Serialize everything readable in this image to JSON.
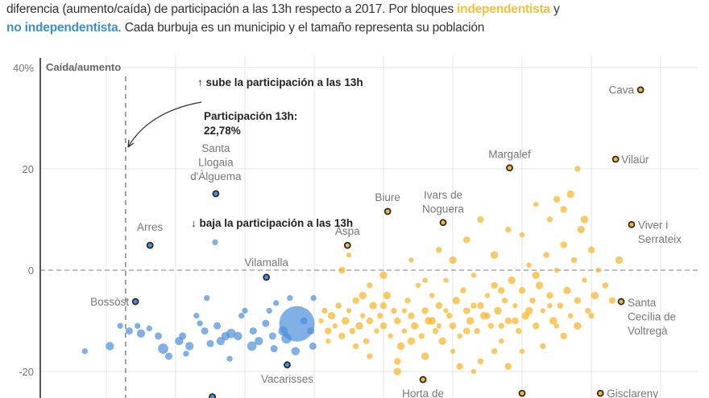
{
  "header": {
    "line1_text": "diferencia (aumento/caída) de participación a las 13h respecto a 2017. Por bloques ",
    "independentista": "independentista",
    "y": " y",
    "no_independentista": "no independentista",
    "line2_text": ". Cada burbuja es un municipio y el tamaño representa su población"
  },
  "chart_data": {
    "type": "scatter",
    "ylabel": "Caída/aumento",
    "y_ticks": [
      "40%",
      "20",
      "0",
      "-20"
    ],
    "y_tick_values": [
      40,
      20,
      0,
      -20
    ],
    "ylim": [
      -25,
      42
    ],
    "xlim": [
      10.5,
      105
    ],
    "x_grid": [
      20,
      30,
      40,
      50,
      60,
      70,
      80,
      90,
      100
    ],
    "grid": true,
    "colors": {
      "independentista": "#f5b731",
      "no_independentista": "#4a8fdc",
      "highlight_stroke": "#2b2b2b"
    },
    "reference_line": {
      "x": 22.78,
      "label": "Participación 13h:",
      "value": "22,78%"
    },
    "annotations": {
      "up": "↑ sube la participación a las 13h",
      "down": "↓ baja la participación a las 13h"
    },
    "highlighted": [
      {
        "name": [
          "Cava"
        ],
        "x": 97.1,
        "y": 35.6,
        "bloc": "independentista"
      },
      {
        "name": [
          "Vilaür"
        ],
        "x": 93.5,
        "y": 21.9,
        "bloc": "independentista"
      },
      {
        "name": [
          "Margalef"
        ],
        "x": 78.2,
        "y": 20.2,
        "bloc": "independentista"
      },
      {
        "name": [
          "Biure"
        ],
        "x": 60.6,
        "y": 11.6,
        "bloc": "independentista"
      },
      {
        "name": [
          "Ivars de",
          "Noguera"
        ],
        "x": 68.6,
        "y": 9.4,
        "bloc": "independentista"
      },
      {
        "name": [
          "Aspa"
        ],
        "x": 54.8,
        "y": 4.9,
        "bloc": "independentista"
      },
      {
        "name": [
          "Viver i",
          "Serrateix"
        ],
        "x": 95.8,
        "y": 9.0,
        "bloc": "independentista"
      },
      {
        "name": [
          "Santa",
          "Cecília de",
          "Voltregà"
        ],
        "x": 94.3,
        "y": -6.2,
        "bloc": "independentista"
      },
      {
        "name": [
          "Horta de"
        ],
        "x": 65.7,
        "y": -21.6,
        "bloc": "independentista"
      },
      {
        "name": [],
        "x": 80.0,
        "y": -24.3,
        "bloc": "independentista"
      },
      {
        "name": [
          "Gisclareny"
        ],
        "x": 91.3,
        "y": -24.3,
        "bloc": "independentista"
      },
      {
        "name": [
          "Santa",
          "Llogaia",
          "d'Àlguema"
        ],
        "x": 35.8,
        "y": 15.1,
        "bloc": "no_independentista"
      },
      {
        "name": [
          "Arres"
        ],
        "x": 26.3,
        "y": 4.9,
        "bloc": "no_independentista"
      },
      {
        "name": [
          "Vilamalla"
        ],
        "x": 43.1,
        "y": -1.4,
        "bloc": "no_independentista"
      },
      {
        "name": [
          "Bossòst"
        ],
        "x": 24.2,
        "y": -6.2,
        "bloc": "no_independentista"
      },
      {
        "name": [
          "Vacarisses"
        ],
        "x": 46.1,
        "y": -18.7,
        "bloc": "no_independentista"
      },
      {
        "name": [],
        "x": 35.3,
        "y": -25.0,
        "bloc": "no_independentista"
      }
    ],
    "no_independentista_points": [
      [
        16.9,
        -16,
        2
      ],
      [
        23.3,
        -12,
        3
      ],
      [
        24.5,
        -11,
        2
      ],
      [
        25,
        -12.5,
        4
      ],
      [
        26.2,
        -11.5,
        2
      ],
      [
        28.2,
        -15.5,
        6
      ],
      [
        29,
        -17,
        3
      ],
      [
        30.5,
        -14,
        4
      ],
      [
        31,
        -13,
        3
      ],
      [
        32,
        -15,
        4
      ],
      [
        33,
        -9,
        2
      ],
      [
        33.5,
        -10.5,
        2
      ],
      [
        34.2,
        -12,
        3
      ],
      [
        35,
        -14.5,
        3
      ],
      [
        36,
        -11,
        3
      ],
      [
        37.2,
        -13,
        4
      ],
      [
        38,
        -12.5,
        5
      ],
      [
        39,
        -13,
        4
      ],
      [
        39.5,
        -9,
        2
      ],
      [
        40,
        -8,
        2
      ],
      [
        41,
        -15,
        5
      ],
      [
        42,
        -14,
        4
      ],
      [
        43,
        -10.5,
        3
      ],
      [
        44,
        -13,
        3
      ],
      [
        44.5,
        -6.5,
        2
      ],
      [
        45.5,
        -12,
        5
      ],
      [
        46,
        -13.5,
        6
      ],
      [
        46.5,
        -5.5,
        2
      ],
      [
        47.5,
        -10.6,
        14
      ],
      [
        48.5,
        -10,
        3
      ],
      [
        49.5,
        -12,
        3
      ],
      [
        49.8,
        -15,
        3
      ],
      [
        49.9,
        -5.5,
        2
      ],
      [
        47.3,
        -16,
        4
      ],
      [
        44.2,
        -15.5,
        3
      ],
      [
        35.7,
        5.5,
        2
      ],
      [
        31.5,
        -16.5,
        2
      ],
      [
        34.5,
        -5.5,
        2
      ],
      [
        41.2,
        -12,
        3
      ],
      [
        37.8,
        -17.5,
        2
      ],
      [
        20.5,
        -15,
        4
      ],
      [
        22,
        -11,
        2
      ],
      [
        27.5,
        -13,
        3
      ],
      [
        36.5,
        -14,
        4
      ],
      [
        43.5,
        -8,
        2
      ]
    ],
    "independentista_points": [
      [
        51,
        -10
      ],
      [
        51.5,
        -8
      ],
      [
        52,
        -12
      ],
      [
        52.5,
        -9
      ],
      [
        53,
        -11
      ],
      [
        53.5,
        -7
      ],
      [
        54,
        -13
      ],
      [
        54.5,
        -10
      ],
      [
        55,
        -8
      ],
      [
        55.5,
        -12
      ],
      [
        56,
        -6
      ],
      [
        56.5,
        -11
      ],
      [
        57,
        -9
      ],
      [
        57.5,
        -14
      ],
      [
        58,
        -10
      ],
      [
        58.5,
        -7
      ],
      [
        59,
        -12
      ],
      [
        59.5,
        -9
      ],
      [
        60,
        -11
      ],
      [
        60.5,
        -5
      ],
      [
        61,
        -13
      ],
      [
        61.5,
        -8
      ],
      [
        62,
        -10
      ],
      [
        62.5,
        -15
      ],
      [
        63,
        -12
      ],
      [
        63.5,
        -6
      ],
      [
        64,
        -9
      ],
      [
        64.5,
        -11
      ],
      [
        65,
        -3
      ],
      [
        65.5,
        -13
      ],
      [
        66,
        -8
      ],
      [
        66.5,
        -10
      ],
      [
        67,
        -5
      ],
      [
        67.5,
        -12
      ],
      [
        68,
        -7
      ],
      [
        68.5,
        -14
      ],
      [
        69,
        -2
      ],
      [
        69.5,
        -9
      ],
      [
        70,
        -11
      ],
      [
        70.5,
        -6
      ],
      [
        71,
        -13
      ],
      [
        71.5,
        -4
      ],
      [
        72,
        -8
      ],
      [
        72.5,
        -10
      ],
      [
        73,
        -1
      ],
      [
        73.5,
        -12
      ],
      [
        74,
        -7
      ],
      [
        74.5,
        -9
      ],
      [
        75,
        -5
      ],
      [
        75.5,
        -11
      ],
      [
        76,
        -3
      ],
      [
        76.5,
        -8
      ],
      [
        77,
        -14
      ],
      [
        77.5,
        -6
      ],
      [
        78,
        -10
      ],
      [
        78.5,
        -2
      ],
      [
        79,
        -7
      ],
      [
        79.5,
        -12
      ],
      [
        80,
        -4
      ],
      [
        80.5,
        -9
      ],
      [
        81,
        1
      ],
      [
        81.5,
        -6
      ],
      [
        82,
        -11
      ],
      [
        82.5,
        -3
      ],
      [
        83,
        -8
      ],
      [
        83.5,
        3
      ],
      [
        84,
        -5
      ],
      [
        84.5,
        -10
      ],
      [
        85,
        0
      ],
      [
        85.5,
        -7
      ],
      [
        86,
        5
      ],
      [
        86.5,
        -4
      ],
      [
        87,
        -9
      ],
      [
        87.5,
        2
      ],
      [
        88,
        -6
      ],
      [
        88.5,
        8
      ],
      [
        89,
        -2
      ],
      [
        89.5,
        -8
      ],
      [
        90,
        4
      ],
      [
        90.5,
        -5
      ],
      [
        91,
        0
      ],
      [
        92,
        -3
      ],
      [
        93,
        -6
      ],
      [
        94,
        2
      ],
      [
        55,
        3
      ],
      [
        58,
        -17
      ],
      [
        62,
        -18
      ],
      [
        66,
        -17
      ],
      [
        70,
        -16
      ],
      [
        74,
        -18
      ],
      [
        78,
        -19
      ],
      [
        60,
        -1
      ],
      [
        64,
        2
      ],
      [
        68,
        4
      ],
      [
        72,
        6
      ],
      [
        76,
        3
      ],
      [
        80,
        7
      ],
      [
        84,
        10
      ],
      [
        86,
        12
      ],
      [
        87,
        15
      ],
      [
        82,
        13
      ],
      [
        78,
        8
      ],
      [
        74,
        10
      ],
      [
        70,
        2
      ],
      [
        66,
        -2
      ],
      [
        58,
        -3
      ],
      [
        54,
        0
      ],
      [
        62,
        -20
      ],
      [
        73,
        -20
      ],
      [
        83,
        -15
      ],
      [
        86,
        -13
      ],
      [
        88,
        -11
      ],
      [
        80,
        -16
      ],
      [
        76,
        -16
      ],
      [
        71,
        -19
      ],
      [
        57,
        -5
      ],
      [
        69,
        -8
      ],
      [
        75,
        -9
      ],
      [
        79,
        -10
      ],
      [
        81,
        -8
      ],
      [
        84,
        -7
      ],
      [
        77,
        -11
      ],
      [
        72,
        -12
      ],
      [
        67,
        -10
      ],
      [
        63,
        -8
      ],
      [
        88,
        20
      ],
      [
        85,
        14
      ],
      [
        89,
        10
      ],
      [
        52,
        -14
      ],
      [
        56,
        -15
      ],
      [
        60,
        -7
      ],
      [
        64,
        -14
      ],
      [
        68,
        -11
      ],
      [
        73,
        -7
      ],
      [
        77,
        -4
      ],
      [
        82,
        -1
      ],
      [
        85,
        -11
      ],
      [
        90,
        -9
      ]
    ]
  }
}
